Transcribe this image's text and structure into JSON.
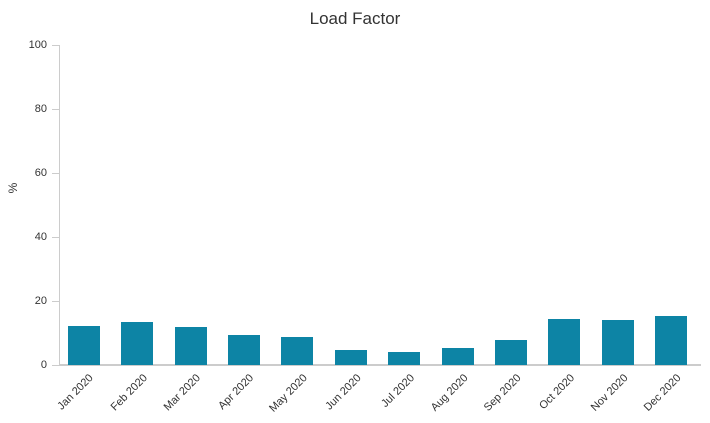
{
  "title": "Load Factor",
  "chart_data": {
    "type": "bar",
    "title": "Load Factor",
    "xlabel": "",
    "ylabel": "%",
    "categories": [
      "Jan 2020",
      "Feb 2020",
      "Mar 2020",
      "Apr 2020",
      "May 2020",
      "Jun 2020",
      "Jul 2020",
      "Aug 2020",
      "Sep 2020",
      "Oct 2020",
      "Nov 2020",
      "Dec 2020"
    ],
    "values": [
      12.1,
      13.3,
      11.9,
      9.4,
      8.8,
      4.6,
      4.0,
      5.2,
      7.9,
      14.3,
      14.1,
      15.3
    ],
    "ylim": [
      0,
      100
    ],
    "yticks": [
      0,
      20,
      40,
      60,
      80,
      100
    ],
    "grid": false,
    "legend": "none",
    "bar_color": "#0d84a5",
    "axis_color": "#cccccc",
    "text_color": "#333333"
  }
}
